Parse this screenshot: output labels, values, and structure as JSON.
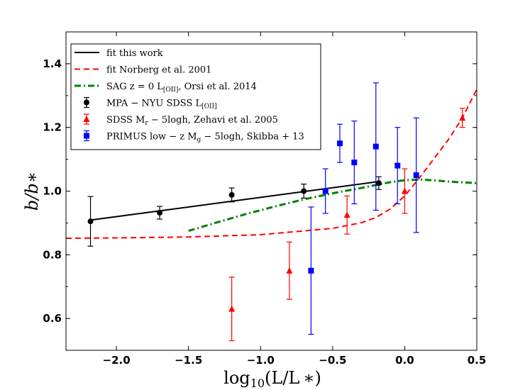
{
  "chart_data": {
    "type": "scatter",
    "title": "",
    "xlabel": "log10(L/L*)",
    "ylabel": "b/b*",
    "xlim": [
      -2.35,
      0.5
    ],
    "ylim": [
      0.5,
      1.5
    ],
    "x_ticks": [
      -2.0,
      -1.5,
      -1.0,
      -0.5,
      0.0,
      0.5
    ],
    "x_tick_labels": [
      "−2.0",
      "−1.5",
      "−1.0",
      "−0.5",
      "0.0",
      "0.5"
    ],
    "y_ticks": [
      0.6,
      0.8,
      1.0,
      1.2,
      1.4
    ],
    "y_tick_labels": [
      "0.6",
      "0.8",
      "1.0",
      "1.2",
      "1.4"
    ],
    "grid": false,
    "legend_position": "top-left",
    "series": [
      {
        "name": "fit this work",
        "kind": "line",
        "style": "solid",
        "color": "#000000",
        "x": [
          -2.18,
          -0.18
        ],
        "y": [
          0.909,
          1.03
        ]
      },
      {
        "name": "fit Norberg et al. 2001",
        "kind": "line",
        "style": "dashed",
        "color": "#ff0000",
        "x": [
          -2.35,
          -2.0,
          -1.5,
          -1.0,
          -0.5,
          -0.3,
          -0.2,
          -0.1,
          0.0,
          0.1,
          0.2,
          0.3,
          0.4,
          0.5
        ],
        "y": [
          0.852,
          0.853,
          0.856,
          0.863,
          0.883,
          0.901,
          0.917,
          0.944,
          0.985,
          1.04,
          1.1,
          1.16,
          1.23,
          1.32
        ]
      },
      {
        "name": "SAG z = 0 L[OII], Orsi et al. 2014",
        "legend_main": "SAG z = 0 L",
        "legend_sub": "[OII]",
        "legend_tail": ", Orsi et al. 2014",
        "kind": "line",
        "style": "dashdot",
        "color": "#008000",
        "x": [
          -1.5,
          -1.3,
          -1.1,
          -0.9,
          -0.7,
          -0.5,
          -0.3,
          -0.1,
          0.0,
          0.1,
          0.2,
          0.3,
          0.5
        ],
        "y": [
          0.875,
          0.902,
          0.928,
          0.952,
          0.974,
          0.993,
          1.01,
          1.028,
          1.034,
          1.036,
          1.034,
          1.03,
          1.025
        ]
      },
      {
        "name": "MPA-NYU SDSS L[OII]",
        "legend_main": "MPA − NYU SDSS L",
        "legend_sub": "[OII]",
        "legend_tail": "",
        "kind": "errorbar",
        "marker": "circle",
        "color": "#000000",
        "x": [
          -2.18,
          -1.7,
          -1.2,
          -0.7,
          -0.18
        ],
        "y": [
          0.905,
          0.932,
          0.988,
          1.0,
          1.025
        ],
        "yerr": [
          0.078,
          0.02,
          0.022,
          0.022,
          0.02
        ]
      },
      {
        "name": "SDSS Mr - 5logh, Zehavi et al. 2005",
        "legend_main": "SDSS M",
        "legend_sub": "r",
        "legend_tail": " − 5logh, Zehavi et al. 2005",
        "kind": "errorbar",
        "marker": "triangle",
        "color": "#ff0000",
        "x": [
          -1.2,
          -0.8,
          -0.4,
          0.0,
          0.4
        ],
        "y": [
          0.63,
          0.75,
          0.925,
          1.0,
          1.23
        ],
        "yerr": [
          0.1,
          0.09,
          0.06,
          0.07,
          0.03
        ]
      },
      {
        "name": "PRIMUS low-z Mg - 5logh, Skibba+13",
        "legend_main": "PRIMUS low − z M",
        "legend_sub": "g",
        "legend_tail": " − 5logh, Skibba + 13",
        "kind": "errorbar",
        "marker": "square",
        "color": "#0000ff",
        "x": [
          -0.65,
          -0.55,
          -0.45,
          -0.35,
          -0.2,
          -0.05,
          0.08
        ],
        "y": [
          0.75,
          1.0,
          1.15,
          1.09,
          1.14,
          1.08,
          1.05
        ],
        "yerr": [
          0.2,
          0.07,
          0.06,
          0.13,
          0.2,
          0.12,
          0.18
        ]
      }
    ]
  }
}
